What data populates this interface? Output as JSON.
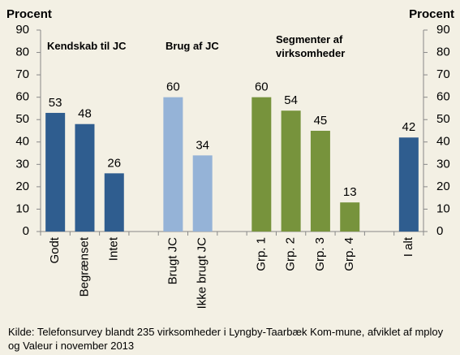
{
  "chart_data": {
    "type": "bar",
    "y_label": "Procent",
    "y2_label": "Procent",
    "categories": [
      "Godt",
      "Begrænset",
      "Intet",
      null,
      "Brugt JC",
      "Ikke brugt JC",
      null,
      "Grp. 1",
      "Grp. 2",
      "Grp. 3",
      "Grp. 4",
      null,
      "I alt"
    ],
    "values": [
      53,
      48,
      26,
      null,
      60,
      34,
      null,
      60,
      54,
      45,
      13,
      null,
      42
    ],
    "colors": [
      "#2f5d8f",
      "#2f5d8f",
      "#2f5d8f",
      null,
      "#95b3d7",
      "#95b3d7",
      null,
      "#77933c",
      "#77933c",
      "#77933c",
      "#77933c",
      null,
      "#2f5d8f"
    ],
    "annotations": [
      "Kendskab til JC",
      "Brug af JC",
      "Segmenter af virksomheder"
    ],
    "ylim": [
      0,
      90
    ],
    "yticks": [
      0,
      10,
      20,
      30,
      40,
      50,
      60,
      70,
      80,
      90
    ],
    "y2lim": [
      0,
      90
    ],
    "y2ticks": [
      0,
      10,
      20,
      30,
      40,
      50,
      60,
      70,
      80,
      90
    ],
    "source": "Kilde: Telefonsurvey blandt 235 virksomheder i Lyngby-Taarbæk Kom-mune, afviklet af mploy og Valeur i november 2013"
  }
}
